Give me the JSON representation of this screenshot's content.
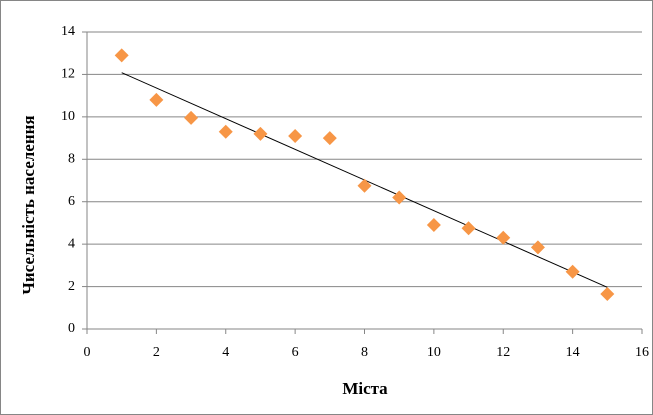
{
  "chart_data": {
    "type": "scatter",
    "x_label": "Міста",
    "y_label": "Чисельність населення",
    "x": [
      1,
      2,
      3,
      4,
      5,
      6,
      7,
      8,
      9,
      10,
      11,
      12,
      13,
      14,
      15
    ],
    "values": [
      12.9,
      10.8,
      9.95,
      9.3,
      9.2,
      9.1,
      9.0,
      6.75,
      6.2,
      4.9,
      4.75,
      4.3,
      3.85,
      2.7,
      1.65
    ],
    "color": "#f79646",
    "trendline": "linear",
    "trendline_color": "#000000",
    "xlim": [
      0,
      16
    ],
    "xticks": [
      0,
      2,
      4,
      6,
      8,
      10,
      12,
      14,
      16
    ],
    "ylim": [
      0,
      14
    ],
    "yticks": [
      0,
      2,
      4,
      6,
      8,
      10,
      12,
      14
    ],
    "grid": true
  }
}
